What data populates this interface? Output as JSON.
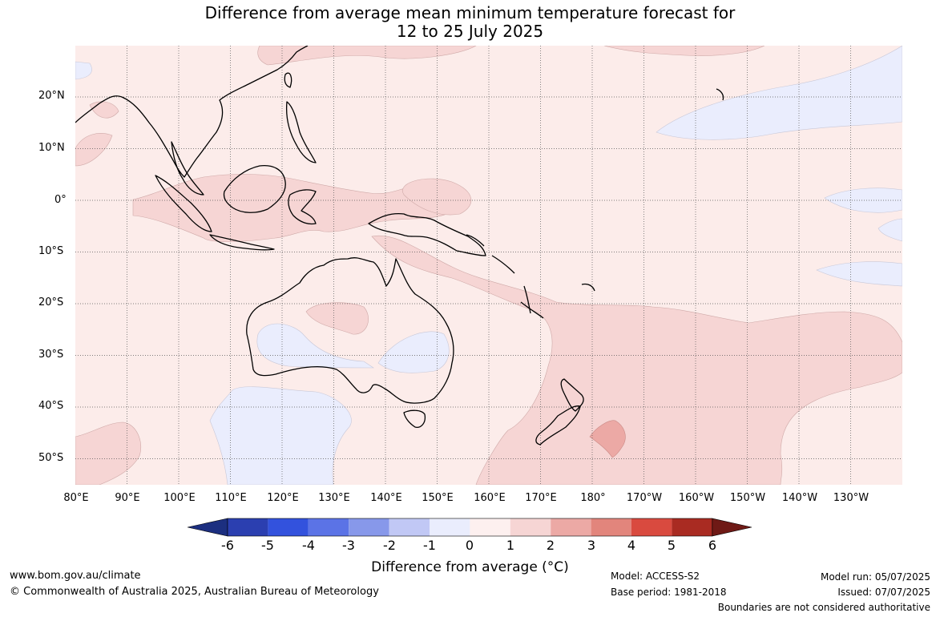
{
  "title_line1": "Difference from average mean minimum temperature forecast for",
  "title_line2": "12 to 25 July 2025",
  "lat_labels": [
    "20°N",
    "10°N",
    "0°",
    "10°S",
    "20°S",
    "30°S",
    "40°S",
    "50°S"
  ],
  "lon_labels": [
    "80°E",
    "90°E",
    "100°E",
    "110°E",
    "120°E",
    "130°E",
    "140°E",
    "150°E",
    "160°E",
    "170°E",
    "180°",
    "170°W",
    "160°W",
    "150°W",
    "140°W",
    "130°W"
  ],
  "colorbar": {
    "label": "Difference from average (°C)",
    "ticks": [
      "-6",
      "-5",
      "-4",
      "-3",
      "-2",
      "-1",
      "0",
      "1",
      "2",
      "3",
      "4",
      "5",
      "6"
    ],
    "colors": [
      "#1c2f80",
      "#2b3fb0",
      "#3352dd",
      "#5b73e6",
      "#8798ea",
      "#c1c8f5",
      "#eaedfd",
      "#fdf0ef",
      "#f6d5d4",
      "#eca9a5",
      "#e2857c",
      "#d94a3f",
      "#a92b22",
      "#6f1a16"
    ]
  },
  "footer": {
    "website": "www.bom.gov.au/climate",
    "copyright": "© Commonwealth of Australia 2025, Australian Bureau of Meteorology",
    "model": "Model: ACCESS-S2",
    "base_period": "Base period: 1981-2018",
    "model_run": "Model run: 05/07/2025",
    "issued": "Issued: 07/07/2025",
    "disclaimer": "Boundaries are not considered authoritative"
  }
}
